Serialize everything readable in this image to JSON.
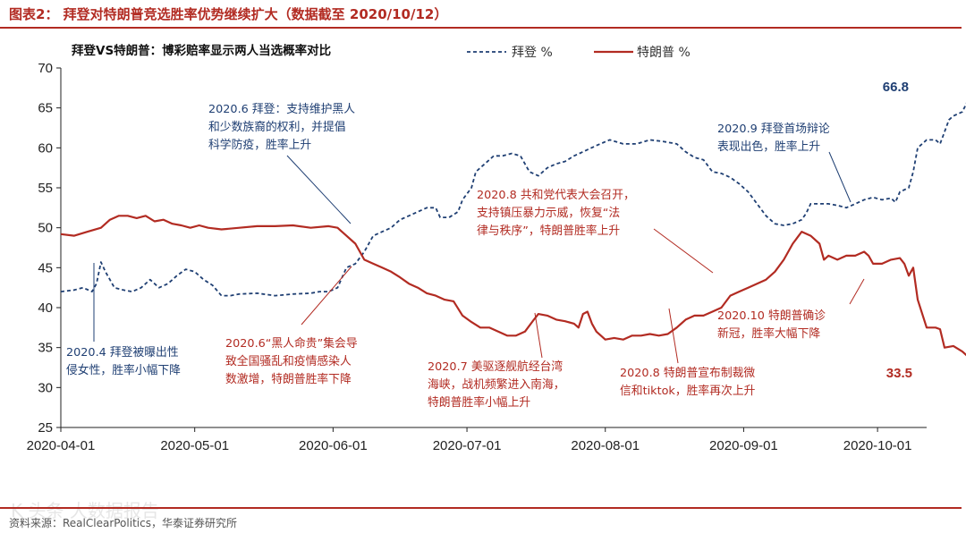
{
  "figure": {
    "title": "图表2：   拜登对特朗普竞选胜率优势继续扩大（数据截至 2020/10/12）",
    "source": "资料来源：RealClearPolitics，华泰证券研究所",
    "watermark": "K 头条 大数据报告"
  },
  "chart_data": {
    "type": "line",
    "title": "拜登VS特朗普：博彩赔率显示两人当选概率对比",
    "xlabel": "",
    "ylabel": "",
    "ylim": [
      25,
      70
    ],
    "yticks": [
      25,
      30,
      35,
      40,
      45,
      50,
      55,
      60,
      65,
      70
    ],
    "x_start": "2020-04-01",
    "x_end": "2020-10-12",
    "xticks": [
      "2020-04-01",
      "2020-05-01",
      "2020-06-01",
      "2020-07-01",
      "2020-08-01",
      "2020-09-01",
      "2020-10-01"
    ],
    "legend_position": "top",
    "series": [
      {
        "name": "拜登 %",
        "color": "#1f3f73",
        "style": "dashed",
        "points": [
          [
            0,
            42
          ],
          [
            3,
            42.2
          ],
          [
            5,
            42.5
          ],
          [
            7,
            42
          ],
          [
            8,
            43
          ],
          [
            9,
            45.7
          ],
          [
            10,
            44.5
          ],
          [
            12,
            42.5
          ],
          [
            14,
            42.2
          ],
          [
            16,
            42
          ],
          [
            18,
            42.5
          ],
          [
            20,
            43.5
          ],
          [
            22,
            42.5
          ],
          [
            24,
            43
          ],
          [
            26,
            44
          ],
          [
            28,
            44.8
          ],
          [
            30,
            44.5
          ],
          [
            32,
            43.5
          ],
          [
            34,
            42.8
          ],
          [
            36,
            41.5
          ],
          [
            38,
            41.5
          ],
          [
            40,
            41.7
          ],
          [
            44,
            41.8
          ],
          [
            48,
            41.5
          ],
          [
            52,
            41.7
          ],
          [
            56,
            41.8
          ],
          [
            58,
            42
          ],
          [
            60,
            42
          ],
          [
            62,
            42.5
          ],
          [
            64,
            45
          ],
          [
            66,
            45.5
          ],
          [
            68,
            47
          ],
          [
            70,
            49
          ],
          [
            72,
            49.5
          ],
          [
            74,
            50
          ],
          [
            76,
            51
          ],
          [
            78,
            51.5
          ],
          [
            80,
            52
          ],
          [
            82,
            52.5
          ],
          [
            84,
            52.5
          ],
          [
            85,
            51.3
          ],
          [
            87,
            51.3
          ],
          [
            89,
            52
          ],
          [
            90,
            53.5
          ],
          [
            92,
            55
          ],
          [
            93,
            57
          ],
          [
            95,
            58
          ],
          [
            97,
            59
          ],
          [
            99,
            59
          ],
          [
            101,
            59.3
          ],
          [
            103,
            59
          ],
          [
            104,
            58
          ],
          [
            105,
            57
          ],
          [
            107,
            56.5
          ],
          [
            109,
            57.5
          ],
          [
            111,
            58
          ],
          [
            113,
            58.3
          ],
          [
            115,
            59
          ],
          [
            117,
            59.5
          ],
          [
            120,
            60.3
          ],
          [
            123,
            61
          ],
          [
            126,
            60.5
          ],
          [
            129,
            60.5
          ],
          [
            132,
            61
          ],
          [
            135,
            60.8
          ],
          [
            138,
            60.5
          ],
          [
            140,
            59.5
          ],
          [
            142,
            58.8
          ],
          [
            144,
            58.5
          ],
          [
            146,
            57
          ],
          [
            148,
            56.8
          ],
          [
            150,
            56.3
          ],
          [
            152,
            55.5
          ],
          [
            154,
            54.5
          ],
          [
            156,
            53
          ],
          [
            158,
            51.5
          ],
          [
            160,
            50.5
          ],
          [
            162,
            50.3
          ],
          [
            164,
            50.5
          ],
          [
            166,
            51
          ],
          [
            167,
            51.8
          ],
          [
            168,
            53
          ],
          [
            170,
            53
          ],
          [
            172,
            53
          ],
          [
            174,
            52.8
          ],
          [
            176,
            52.5
          ],
          [
            178,
            53
          ],
          [
            180,
            53.5
          ],
          [
            182,
            53.8
          ],
          [
            184,
            53.5
          ],
          [
            186,
            53.7
          ],
          [
            187,
            53.2
          ],
          [
            188,
            54.5
          ],
          [
            190,
            55
          ],
          [
            191,
            57
          ],
          [
            192,
            60
          ],
          [
            194,
            61
          ],
          [
            196,
            61
          ],
          [
            197,
            60.5
          ],
          [
            198,
            62
          ],
          [
            199,
            63.5
          ],
          [
            200,
            64
          ],
          [
            202,
            64.5
          ],
          [
            204,
            66.8
          ],
          [
            205,
            67.3
          ],
          [
            207,
            66.8
          ]
        ]
      },
      {
        "name": "特朗普 %",
        "color": "#b22b22",
        "style": "solid",
        "points": [
          [
            0,
            49.2
          ],
          [
            3,
            49
          ],
          [
            6,
            49.5
          ],
          [
            9,
            50
          ],
          [
            11,
            51
          ],
          [
            13,
            51.5
          ],
          [
            15,
            51.5
          ],
          [
            17,
            51.2
          ],
          [
            19,
            51.5
          ],
          [
            21,
            50.8
          ],
          [
            23,
            51
          ],
          [
            25,
            50.5
          ],
          [
            27,
            50.3
          ],
          [
            29,
            50
          ],
          [
            31,
            50.3
          ],
          [
            33,
            50
          ],
          [
            36,
            49.8
          ],
          [
            40,
            50
          ],
          [
            44,
            50.2
          ],
          [
            48,
            50.2
          ],
          [
            52,
            50.3
          ],
          [
            56,
            50
          ],
          [
            60,
            50.2
          ],
          [
            62,
            50
          ],
          [
            64,
            49
          ],
          [
            66,
            48
          ],
          [
            68,
            46
          ],
          [
            70,
            45.5
          ],
          [
            72,
            45
          ],
          [
            74,
            44.5
          ],
          [
            76,
            43.8
          ],
          [
            78,
            43
          ],
          [
            80,
            42.5
          ],
          [
            82,
            41.8
          ],
          [
            84,
            41.5
          ],
          [
            86,
            41
          ],
          [
            88,
            40.8
          ],
          [
            90,
            39
          ],
          [
            92,
            38.2
          ],
          [
            94,
            37.5
          ],
          [
            96,
            37.5
          ],
          [
            98,
            37
          ],
          [
            100,
            36.5
          ],
          [
            102,
            36.5
          ],
          [
            104,
            37
          ],
          [
            106,
            38.5
          ],
          [
            107,
            39.2
          ],
          [
            109,
            39
          ],
          [
            111,
            38.5
          ],
          [
            113,
            38.3
          ],
          [
            115,
            38
          ],
          [
            116,
            37.5
          ],
          [
            117,
            39.2
          ],
          [
            118,
            39.5
          ],
          [
            119,
            38
          ],
          [
            120,
            37
          ],
          [
            122,
            36
          ],
          [
            124,
            36.2
          ],
          [
            126,
            36
          ],
          [
            128,
            36.5
          ],
          [
            130,
            36.5
          ],
          [
            132,
            36.7
          ],
          [
            134,
            36.5
          ],
          [
            136,
            36.7
          ],
          [
            138,
            37.5
          ],
          [
            140,
            38.5
          ],
          [
            142,
            39
          ],
          [
            144,
            39
          ],
          [
            146,
            39.5
          ],
          [
            148,
            40
          ],
          [
            150,
            41.5
          ],
          [
            152,
            42
          ],
          [
            154,
            42.5
          ],
          [
            156,
            43
          ],
          [
            158,
            43.5
          ],
          [
            160,
            44.5
          ],
          [
            162,
            46
          ],
          [
            164,
            48
          ],
          [
            166,
            49.5
          ],
          [
            168,
            49
          ],
          [
            170,
            48
          ],
          [
            171,
            46
          ],
          [
            172,
            46.5
          ],
          [
            174,
            46
          ],
          [
            176,
            46.5
          ],
          [
            178,
            46.5
          ],
          [
            180,
            47
          ],
          [
            181,
            46.5
          ],
          [
            182,
            45.5
          ],
          [
            184,
            45.5
          ],
          [
            186,
            46
          ],
          [
            188,
            46.2
          ],
          [
            189,
            45.5
          ],
          [
            190,
            44
          ],
          [
            191,
            45
          ],
          [
            192,
            41
          ],
          [
            194,
            37.5
          ],
          [
            196,
            37.5
          ],
          [
            197,
            37.3
          ],
          [
            198,
            35
          ],
          [
            200,
            35.2
          ],
          [
            202,
            34.5
          ],
          [
            203,
            34
          ],
          [
            204,
            32.8
          ],
          [
            206,
            33.5
          ],
          [
            207,
            33.5
          ]
        ]
      }
    ],
    "end_labels": {
      "biden": "66.8",
      "trump": "33.5"
    },
    "annotations": [
      {
        "id": "biden-apr",
        "lines": [
          "2020.4 拜登被曝出性",
          "侵女性，胜率小幅下降"
        ]
      },
      {
        "id": "biden-jun",
        "lines": [
          "2020.6 拜登：支持维护黑人",
          "和少数族裔的权利，并提倡",
          "科学防疫，胜率上升"
        ]
      },
      {
        "id": "biden-sep",
        "lines": [
          "2020.9 拜登首场辩论",
          "表现出色，胜率上升"
        ]
      },
      {
        "id": "trump-jun",
        "lines": [
          "2020.6“黑人命贵”集会导",
          "致全国骚乱和疫情感染人",
          "数激增，特朗普胜率下降"
        ]
      },
      {
        "id": "trump-jul",
        "lines": [
          "2020.7 美驱逐舰航经台湾",
          "海峡，战机频繁进入南海，",
          "特朗普胜率小幅上升"
        ]
      },
      {
        "id": "trump-aug-rnc",
        "lines": [
          "2020.8 共和党代表大会召开，",
          "支持镇压暴力示威，恢复“法",
          "律与秩序”，特朗普胜率上升"
        ]
      },
      {
        "id": "trump-aug-tiktok",
        "lines": [
          "2020.8 特朗普宣布制裁微",
          "信和tiktok，胜率再次上升"
        ]
      },
      {
        "id": "trump-oct",
        "lines": [
          "2020.10 特朗普确诊",
          "新冠，胜率大幅下降"
        ]
      }
    ]
  }
}
